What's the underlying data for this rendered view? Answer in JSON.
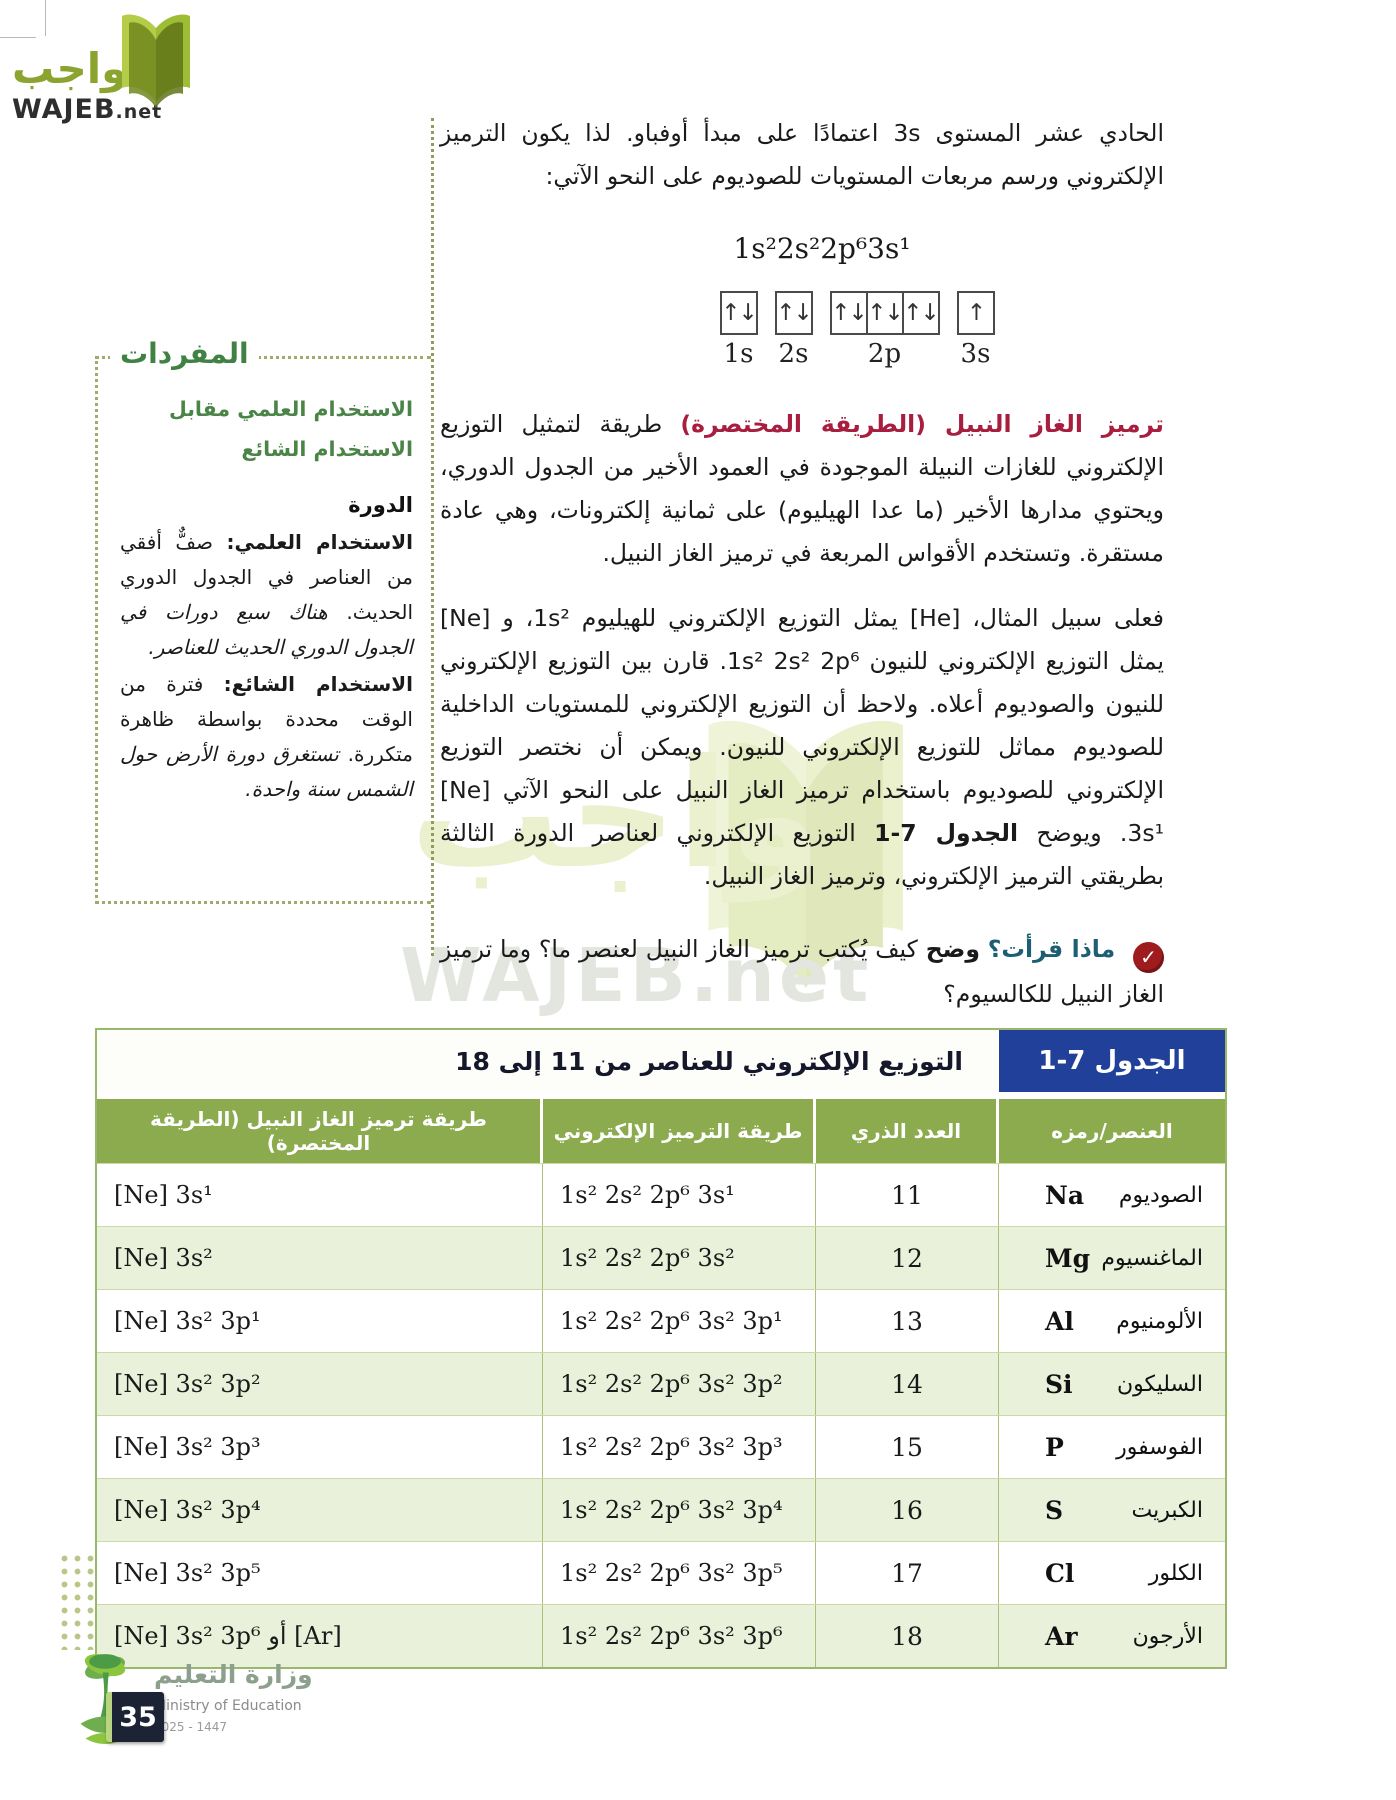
{
  "logo": {
    "arabic": "واجب",
    "latin": "WAJEB",
    "tld": ".net"
  },
  "watermark": {
    "arabic": "واجب",
    "latin": "WAJEB.net"
  },
  "intro": {
    "text": "الحادي عشر المستوى ‎3s‎ اعتمادًا على مبدأ أوفباو. لذا يكون الترميز الإلكتروني ورسم مربعات المستويات للصوديوم على النحو الآتي:"
  },
  "formula": "1s²2s²2p⁶3s¹",
  "orbital_diagram": {
    "groups": [
      {
        "label": "1s",
        "boxes": [
          "↑↓"
        ]
      },
      {
        "label": "2s",
        "boxes": [
          "↑↓"
        ]
      },
      {
        "label": "2p",
        "boxes": [
          "↑↓",
          "↑↓",
          "↑↓"
        ]
      },
      {
        "label": "3s",
        "boxes": [
          "↑"
        ]
      }
    ]
  },
  "paragraph1": {
    "lead": "ترميز الغاز النبيل (الطريقة المختصرة)",
    "body": " طريقة لتمثيل التوزيع الإلكتروني للغازات النبيلة الموجودة في العمود الأخير من الجدول الدوري، ويحتوي مدارها الأخير (ما عدا الهيليوم) على ثمانية إلكترونات، وهي عادة مستقرة. وتستخدم الأقواس المربعة في ترميز الغاز النبيل."
  },
  "paragraph2": {
    "before_bold": "فعلى سبيل المثال، ‎[He]‎ يمثل التوزيع الإلكتروني للهيليوم ‎1s²‎، و ‎[Ne]‎ يمثل التوزيع الإلكتروني للنيون ‎1s² 2s² 2p⁶‎. قارن بين التوزيع الإلكتروني للنيون والصوديوم أعلاه. ولاحظ أن التوزيع الإلكتروني للمستويات الداخلية للصوديوم مماثل للتوزيع الإلكتروني للنيون. ويمكن أن نختصر التوزيع الإلكتروني للصوديوم باستخدام ترميز الغاز النبيل على النحو الآتي ‎[Ne] 3s¹‎. ويوضح ",
    "bold": "الجدول 7-1",
    "after_bold": " التوزيع الإلكتروني لعناصر الدورة الثالثة بطريقتي الترميز الإلكتروني، وترميز الغاز النبيل."
  },
  "reading_check": {
    "icon": "✓",
    "label": "ماذا قرأت؟",
    "verb": "وضح",
    "question": " كيف يُكتب ترميز الغاز النبيل لعنصر ما؟ وما ترميز الغاز النبيل للكالسيوم؟"
  },
  "vocab": {
    "title": "المفردات",
    "subtitle_line1": "الاستخدام العلمي مقابل",
    "subtitle_line2": "الاستخدام الشائع",
    "term": "الدورة",
    "scientific_label": "الاستخدام العلمي:",
    "scientific_text": " صفٌّ أفقي من العناصر في الجدول الدوري الحديث.",
    "scientific_example": "هناك سبع دورات في الجدول الدوري الحديث للعناصر.",
    "common_label": "الاستخدام الشائع:",
    "common_text": " فترة من الوقت محددة بواسطة ظاهرة متكررة.",
    "common_example": "تستغرق دورة الأرض حول الشمس سنة واحدة."
  },
  "table": {
    "title_box": "الجدول 7-1",
    "title": "التوزيع الإلكتروني للعناصر من 11 إلى 18",
    "headers": [
      "العنصر/رمزه",
      "العدد الذري",
      "طريقة الترميز الإلكتروني",
      "طريقة ترميز الغاز النبيل (الطريقة المختصرة)"
    ],
    "rows": [
      {
        "name": "الصوديوم",
        "symbol": "Na",
        "z": "11",
        "config": "1s² 2s² 2p⁶ 3s¹",
        "noble": "[Ne] 3s¹"
      },
      {
        "name": "الماغنسيوم",
        "symbol": "Mg",
        "z": "12",
        "config": "1s² 2s² 2p⁶ 3s²",
        "noble": "[Ne] 3s²"
      },
      {
        "name": "الألومنيوم",
        "symbol": "Al",
        "z": "13",
        "config": "1s² 2s² 2p⁶ 3s² 3p¹",
        "noble": "[Ne] 3s² 3p¹"
      },
      {
        "name": "السليكون",
        "symbol": "Si",
        "z": "14",
        "config": "1s² 2s² 2p⁶ 3s² 3p²",
        "noble": "[Ne] 3s² 3p²"
      },
      {
        "name": "الفوسفور",
        "symbol": "P",
        "z": "15",
        "config": "1s² 2s² 2p⁶ 3s² 3p³",
        "noble": "[Ne] 3s² 3p³"
      },
      {
        "name": "الكبريت",
        "symbol": "S",
        "z": "16",
        "config": "1s² 2s² 2p⁶ 3s² 3p⁴",
        "noble": "[Ne] 3s² 3p⁴"
      },
      {
        "name": "الكلور",
        "symbol": "Cl",
        "z": "17",
        "config": "1s² 2s² 2p⁶ 3s² 3p⁵",
        "noble": "[Ne] 3s² 3p⁵"
      },
      {
        "name": "الأرجون",
        "symbol": "Ar",
        "z": "18",
        "config": "1s² 2s² 2p⁶ 3s² 3p⁶",
        "noble": "[Ne] 3s² 3p⁶ أو [Ar]"
      }
    ]
  },
  "footer": {
    "ministry_ar": "وزارة التعليم",
    "ministry_en": "Ministry of Education",
    "year": "2025 - 1447",
    "page_number": "35"
  },
  "colors": {
    "accent_green": "#8caa4e",
    "table_blue": "#21409a",
    "maroon": "#a81e3f",
    "teal_label": "#1c5e72",
    "row_green": "#e9f1da",
    "logo_olive": "#8ba32f"
  }
}
